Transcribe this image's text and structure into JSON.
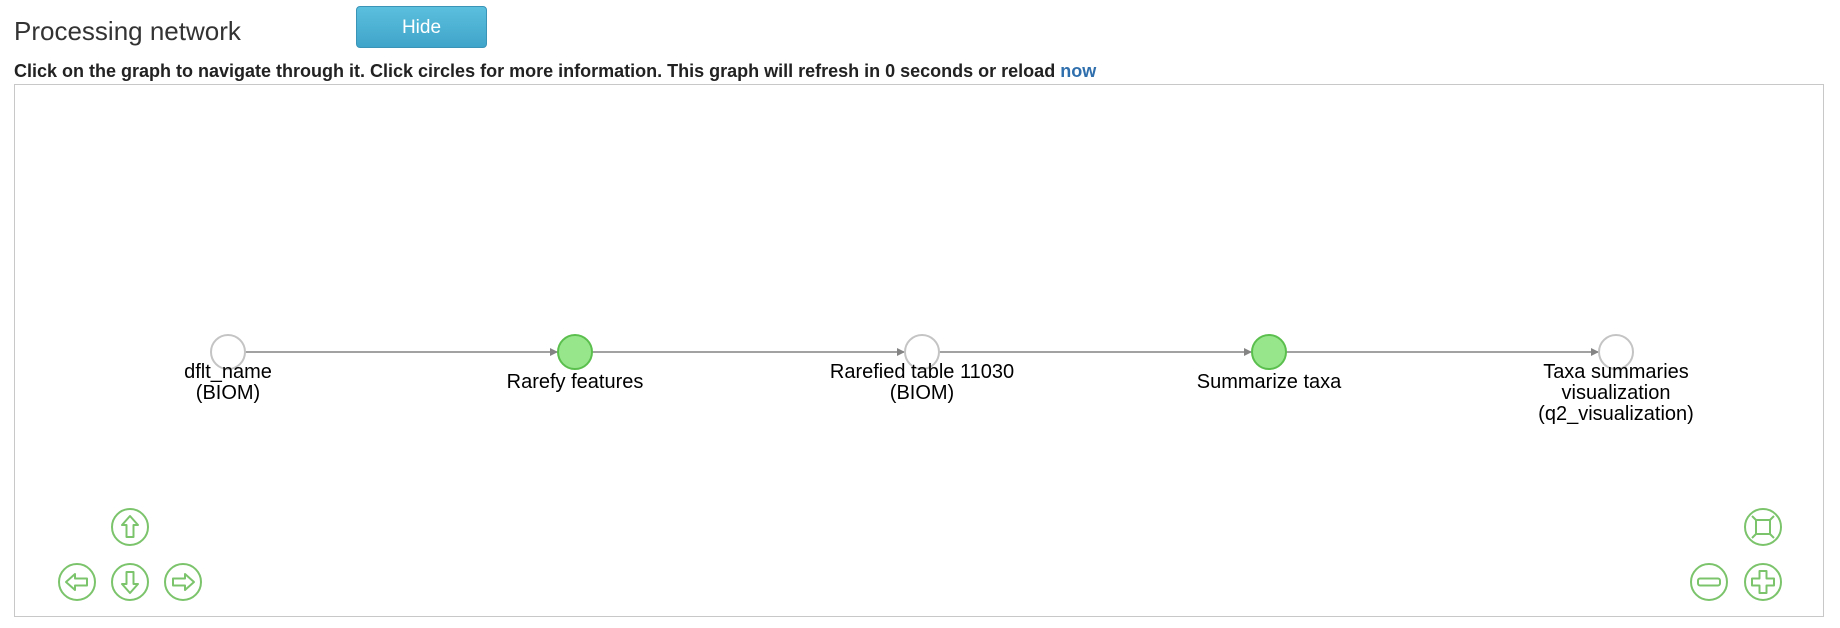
{
  "header": {
    "title": "Processing network",
    "hide_label": "Hide"
  },
  "instructions": {
    "text": "Click on the graph to navigate through it. Click circles for more information. This graph will refresh in 0 seconds or reload ",
    "link": "now"
  },
  "graph": {
    "nodes": [
      {
        "id": "dflt-name",
        "type": "artifact",
        "lines": [
          "dflt_name",
          "(BIOM)"
        ]
      },
      {
        "id": "rarefy-features",
        "type": "job",
        "lines": [
          "Rarefy features"
        ]
      },
      {
        "id": "rarefied-table",
        "type": "artifact",
        "lines": [
          "Rarefied table 11030",
          "(BIOM)"
        ]
      },
      {
        "id": "summarize-taxa",
        "type": "job",
        "lines": [
          "Summarize taxa"
        ]
      },
      {
        "id": "taxa-summaries",
        "type": "artifact",
        "lines": [
          "Taxa summaries",
          "visualization",
          "(q2_visualization)"
        ]
      }
    ],
    "colors": {
      "job_fill": "#97e68c",
      "job_stroke": "#5bbf4e",
      "artifact_fill": "#ffffff",
      "artifact_stroke": "#c4c4c4",
      "edge": "#848484",
      "nav": "#7cc46c"
    },
    "navigation": {
      "up_icon": "arrow-up-icon",
      "down_icon": "arrow-down-icon",
      "left_icon": "arrow-left-icon",
      "right_icon": "arrow-right-icon",
      "fit_icon": "zoom-extends-icon",
      "zoom_out_icon": "zoom-out-icon",
      "zoom_in_icon": "zoom-in-icon"
    }
  }
}
